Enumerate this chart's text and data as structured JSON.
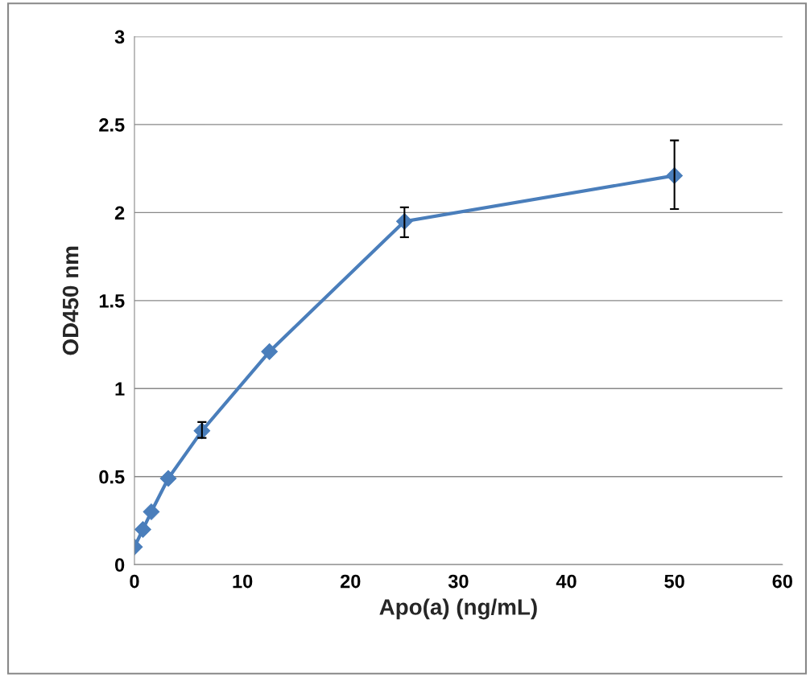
{
  "chart_data": {
    "type": "line",
    "xlabel": "Apo(a) (ng/mL)",
    "ylabel": "OD450 nm",
    "x": [
      0,
      0.78,
      1.56,
      3.13,
      6.25,
      12.5,
      25,
      50
    ],
    "series": [
      {
        "color": "#4a7ebb",
        "values": [
          0.1,
          0.2,
          0.3,
          0.49,
          0.76,
          1.21,
          1.95,
          2.21
        ],
        "errors": [
          null,
          null,
          null,
          null,
          [
            0.72,
            0.81
          ],
          null,
          [
            1.86,
            2.03
          ],
          [
            2.02,
            2.41
          ]
        ]
      }
    ],
    "xlim": [
      0,
      60
    ],
    "xticks": [
      0,
      10,
      20,
      30,
      40,
      50,
      60
    ],
    "ylim": [
      0,
      3
    ],
    "yticks": [
      0,
      0.5,
      1,
      1.5,
      2,
      2.5,
      3
    ],
    "grid": "y",
    "marker": "diamond",
    "line_style": "solid",
    "legend": false
  }
}
